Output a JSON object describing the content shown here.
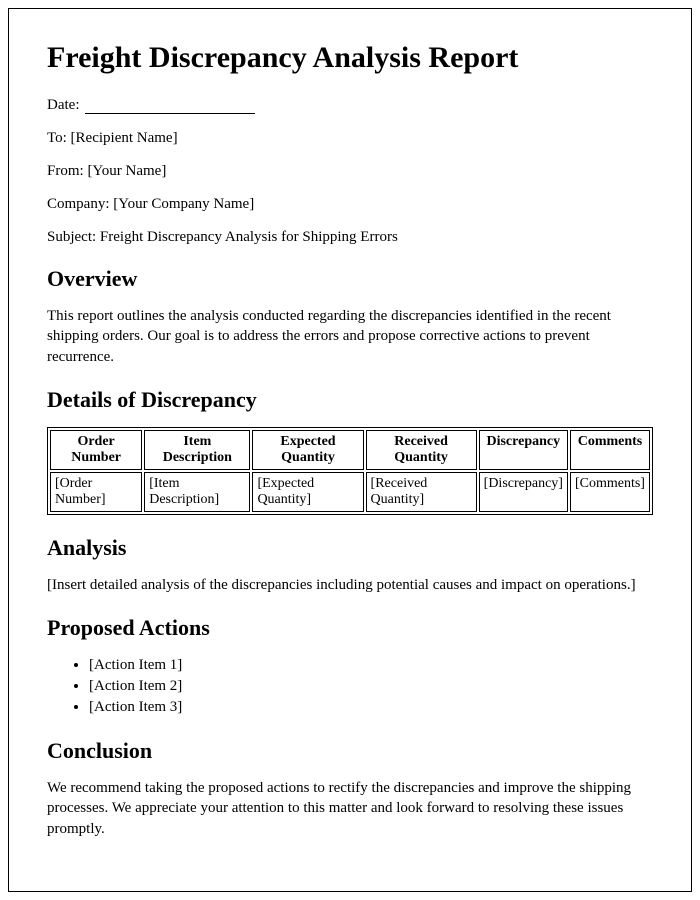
{
  "title": "Freight Discrepancy Analysis Report",
  "meta": {
    "date_label": "Date:",
    "to_label": "To:",
    "to_value": "[Recipient Name]",
    "from_label": "From:",
    "from_value": "[Your Name]",
    "company_label": "Company:",
    "company_value": "[Your Company Name]",
    "subject_label": "Subject:",
    "subject_value": "Freight Discrepancy Analysis for Shipping Errors"
  },
  "overview": {
    "heading": "Overview",
    "text": "This report outlines the analysis conducted regarding the discrepancies identified in the recent shipping orders. Our goal is to address the errors and propose corrective actions to prevent recurrence."
  },
  "details": {
    "heading": "Details of Discrepancy",
    "headers": {
      "c0": "Order Number",
      "c1": "Item Description",
      "c2": "Expected Quantity",
      "c3": "Received Quantity",
      "c4": "Discrepancy",
      "c5": "Comments"
    },
    "row": {
      "c0": "[Order Number]",
      "c1": "[Item Description]",
      "c2": "[Expected Quantity]",
      "c3": "[Received Quantity]",
      "c4": "[Discrepancy]",
      "c5": "[Comments]"
    }
  },
  "analysis": {
    "heading": "Analysis",
    "text": "[Insert detailed analysis of the discrepancies including potential causes and impact on operations.]"
  },
  "actions": {
    "heading": "Proposed Actions",
    "items": {
      "a0": "[Action Item 1]",
      "a1": "[Action Item 2]",
      "a2": "[Action Item 3]"
    }
  },
  "conclusion": {
    "heading": "Conclusion",
    "text": "We recommend taking the proposed actions to rectify the discrepancies and improve the shipping processes. We appreciate your attention to this matter and look forward to resolving these issues promptly."
  },
  "styling": {
    "page_border_color": "#000000",
    "background_color": "#ffffff",
    "text_color": "#000000",
    "h1_fontsize": 30,
    "h2_fontsize": 22,
    "body_fontsize": 15,
    "table_cell_fontsize": 14,
    "font_family": "Georgia, Times New Roman, serif"
  }
}
